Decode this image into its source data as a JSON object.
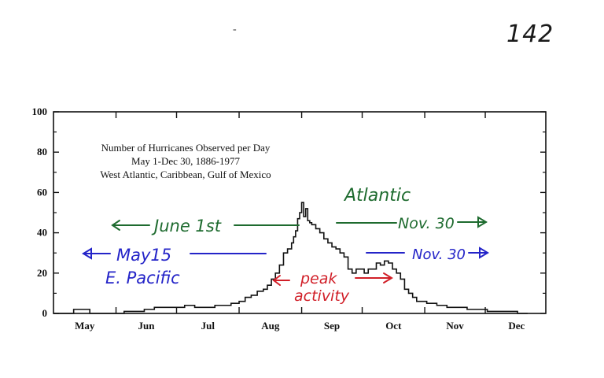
{
  "page_number": "142",
  "dash_mark": "-",
  "chart_data": {
    "type": "area",
    "title_lines": [
      "Number of Hurricanes Observed per Day",
      "May 1-Dec 30, 1886-1977",
      "West Atlantic, Caribbean, Gulf of Mexico"
    ],
    "ylim": [
      0,
      100
    ],
    "yticks": [
      "0",
      "20",
      "40",
      "60",
      "80",
      "100"
    ],
    "months": [
      "May",
      "Jun",
      "Jul",
      "Aug",
      "Sep",
      "Oct",
      "Nov",
      "Dec"
    ],
    "x_unit": "day index from May 1",
    "series": [
      {
        "x": [
          0,
          5,
          10,
          14,
          18,
          22,
          28,
          35,
          40,
          45,
          50,
          55,
          60,
          65,
          70,
          75,
          80,
          85,
          88,
          92,
          95,
          98,
          101,
          104,
          106,
          108,
          110,
          112,
          114,
          116,
          118,
          119,
          120,
          121,
          122,
          123,
          124,
          125,
          126,
          127,
          128,
          130,
          132,
          134,
          136,
          138,
          140,
          142,
          144,
          146,
          148,
          150,
          152,
          154,
          156,
          158,
          160,
          162,
          164,
          166,
          168,
          170,
          172,
          174,
          176,
          178,
          180,
          185,
          190,
          195,
          200,
          205,
          210,
          215,
          220,
          225,
          230,
          235
        ],
        "values": [
          0,
          0,
          2,
          2,
          0,
          0,
          0,
          1,
          1,
          2,
          3,
          3,
          3,
          4,
          3,
          3,
          4,
          4,
          5,
          6,
          8,
          9,
          11,
          12,
          14,
          17,
          20,
          24,
          30,
          32,
          35,
          38,
          41,
          47,
          50,
          55,
          48,
          52,
          46,
          45,
          44,
          42,
          40,
          37,
          35,
          33,
          32,
          30,
          28,
          22,
          20,
          22,
          22,
          20,
          22,
          22,
          25,
          24,
          26,
          25,
          22,
          20,
          17,
          12,
          10,
          8,
          6,
          5,
          4,
          3,
          3,
          2,
          2,
          1,
          1,
          1,
          0,
          0
        ]
      }
    ]
  },
  "annotations": {
    "atlantic_label": "Atlantic",
    "june_1st": "June 1st",
    "nov30_atlantic": "Nov. 30",
    "may15": "May15",
    "nov30_pacific": "Nov. 30",
    "e_pacific": "E. Pacific",
    "peak": "peak",
    "activity": "activity"
  },
  "colors": {
    "axis": "#111111",
    "line": "#111111",
    "atlantic_green": "#1e6b2f",
    "pacific_blue": "#2424c8",
    "peak_red": "#d11f28"
  }
}
